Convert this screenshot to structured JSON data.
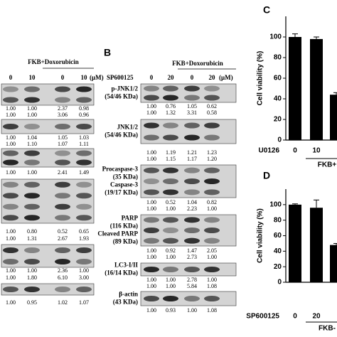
{
  "panel_a": {
    "header": "FKB+Doxorubicin",
    "columns": [
      "0",
      "10",
      "0",
      "10"
    ],
    "unit": "(μM)",
    "blots": [
      {
        "rows": [
          [
            "1.00",
            "1.00",
            "2.37",
            "0.98"
          ],
          [
            "1.00",
            "1.00",
            "3.06",
            "0.96"
          ]
        ]
      },
      {
        "rows": [
          [
            "1.00",
            "1.04",
            "1.05",
            "1.03"
          ],
          [
            "1.00",
            "1.10",
            "1.07",
            "1.11"
          ]
        ]
      },
      {
        "rows": [
          [
            "1.00",
            "1.00",
            "2.41",
            "1.49"
          ]
        ]
      },
      {
        "rows": [
          [
            "1.00",
            "0.80",
            "0.52",
            "0.65"
          ],
          [
            "1.00",
            "1.31",
            "2.67",
            "1.93"
          ]
        ]
      },
      {
        "rows": [
          [
            "1.00",
            "1.00",
            "2.36",
            "1.00"
          ],
          [
            "1.00",
            "1.80",
            "6.10",
            "3.00"
          ]
        ]
      },
      {
        "rows": [
          [
            "1.00",
            "0.95",
            "1.02",
            "1.07"
          ]
        ]
      }
    ]
  },
  "panel_b": {
    "letter": "B",
    "treatment": "SP600125",
    "header": "FKB+Doxorubicin",
    "columns": [
      "0",
      "20",
      "0",
      "20"
    ],
    "unit": "(μM)",
    "blots": [
      {
        "labels": [
          "p-JNK1/2",
          "(54/46 KDa)"
        ],
        "rows": [
          [
            "1.00",
            "0.76",
            "1.05",
            "0.62"
          ],
          [
            "1.00",
            "1.32",
            "3.31",
            "0.58"
          ]
        ]
      },
      {
        "labels": [
          "JNK1/2",
          "(54/46 KDa)"
        ],
        "rows": [
          [
            "1.00",
            "1.19",
            "1.21",
            "1.23"
          ],
          [
            "1.00",
            "1.15",
            "1.17",
            "1.20"
          ]
        ]
      },
      {
        "labels": [
          "Procaspase-3",
          "(35 KDa)",
          "Caspase-3",
          "(19/17 KDa)"
        ],
        "rows": [
          [
            "1.00",
            "0.52",
            "1.04",
            "0.82"
          ],
          [
            "1.00",
            "1.00",
            "2.23",
            "1.00"
          ]
        ]
      },
      {
        "labels": [
          "PARP",
          "(116 KDa)",
          "Cleaved PARP",
          "(89 KDa)"
        ],
        "rows": [
          [
            "1.00",
            "0.92",
            "1.47",
            "2.05"
          ],
          [
            "1.00",
            "1.00",
            "2.73",
            "1.00"
          ]
        ]
      },
      {
        "labels": [
          "LC3-I/II",
          "(16/14 KDa)"
        ],
        "rows": [
          [
            "1.00",
            "1.00",
            "2.78",
            "1.00"
          ],
          [
            "1.00",
            "1.00",
            "5.84",
            "1.08"
          ]
        ]
      },
      {
        "labels": [
          "β-actin",
          "(43 KDa)"
        ],
        "rows": [
          [
            "1.00",
            "0.93",
            "1.00",
            "1.08"
          ]
        ]
      }
    ]
  },
  "chart_data": [
    {
      "type": "bar",
      "letter": "C",
      "ylabel": "Cell viability (%)",
      "treatment": "U0126",
      "categories": [
        "0",
        "10",
        null
      ],
      "values": [
        100,
        98,
        44
      ],
      "errors": [
        3,
        2,
        2
      ],
      "group_label": "FKB+",
      "color": "#000000",
      "ylim": [
        0,
        120
      ],
      "yticks": [
        0,
        20,
        40,
        60,
        80,
        100
      ]
    },
    {
      "type": "bar",
      "letter": "D",
      "ylabel": "Cell viability (%)",
      "treatment": "SP600125",
      "categories": [
        "0",
        "20",
        null
      ],
      "values": [
        100,
        96,
        48
      ],
      "errors": [
        1,
        10,
        2
      ],
      "group_label": "FKB-",
      "color": "#000000",
      "ylim": [
        0,
        120
      ],
      "yticks": [
        0,
        20,
        40,
        60,
        80,
        100
      ]
    }
  ]
}
